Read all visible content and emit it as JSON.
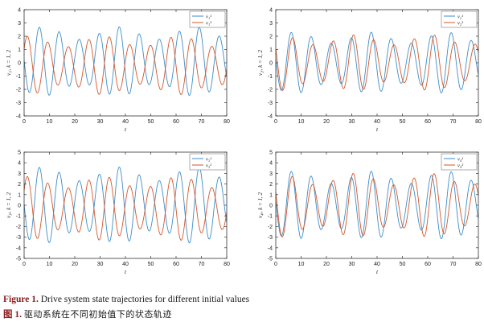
{
  "chart_data": [
    {
      "type": "line",
      "ylabel": "v₁ᵢ, k = 1, 2",
      "xlabel": "t",
      "xlim": [
        0,
        80
      ],
      "ylim": [
        -4,
        4
      ],
      "xticks": [
        0,
        10,
        20,
        30,
        40,
        50,
        60,
        70,
        80
      ],
      "yticks": [
        -4,
        -3,
        -2,
        -1,
        0,
        1,
        2,
        3,
        4
      ],
      "legend_position": "top-right",
      "series": [
        {
          "name": "v₁¹",
          "color": "#3d8ec9",
          "amplitude": 2.6,
          "period": 7.9,
          "phase": 3.1,
          "offset": 0.1
        },
        {
          "name": "v₁²",
          "color": "#d6562a",
          "amplitude": 2.2,
          "period": 8.1,
          "phase": 0.6,
          "offset": -0.2
        }
      ]
    },
    {
      "type": "line",
      "ylabel": "v₂ᵢ, k = 1, 2",
      "xlabel": "t",
      "xlim": [
        0,
        80
      ],
      "ylim": [
        -4,
        4
      ],
      "xticks": [
        0,
        10,
        20,
        30,
        40,
        50,
        60,
        70,
        80
      ],
      "yticks": [
        -4,
        -3,
        -2,
        -1,
        0,
        1,
        2,
        3,
        4
      ],
      "legend_position": "top-right",
      "series": [
        {
          "name": "v₂¹",
          "color": "#3d8ec9",
          "amplitude": 2.3,
          "period": 7.9,
          "phase": 3.0,
          "offset": 0.0
        },
        {
          "name": "v₂²",
          "color": "#d6562a",
          "amplitude": 2.1,
          "period": 8.0,
          "phase": 2.6,
          "offset": 0.0
        }
      ]
    },
    {
      "type": "line",
      "ylabel": "v₃ᵢ, k = 1, 2",
      "xlabel": "t",
      "xlim": [
        0,
        80
      ],
      "ylim": [
        -5,
        5
      ],
      "xticks": [
        0,
        10,
        20,
        30,
        40,
        50,
        60,
        70,
        80
      ],
      "yticks": [
        -5,
        -4,
        -3,
        -2,
        -1,
        0,
        1,
        2,
        3,
        4,
        5
      ],
      "legend_position": "top-right",
      "series": [
        {
          "name": "v₃¹",
          "color": "#3d8ec9",
          "amplitude": 3.6,
          "period": 7.9,
          "phase": 3.1,
          "offset": 0.0
        },
        {
          "name": "v₃²",
          "color": "#d6562a",
          "amplitude": 3.0,
          "period": 8.1,
          "phase": 0.6,
          "offset": -0.3
        }
      ]
    },
    {
      "type": "line",
      "ylabel": "v₄ᵢ, k = 1, 2",
      "xlabel": "t",
      "xlim": [
        0,
        80
      ],
      "ylim": [
        -5,
        5
      ],
      "xticks": [
        0,
        10,
        20,
        30,
        40,
        50,
        60,
        70,
        80
      ],
      "yticks": [
        -5,
        -4,
        -3,
        -2,
        -1,
        0,
        1,
        2,
        3,
        4,
        5
      ],
      "legend_position": "top-right",
      "series": [
        {
          "name": "v₄¹",
          "color": "#3d8ec9",
          "amplitude": 3.2,
          "period": 7.9,
          "phase": 3.0,
          "offset": 0.0
        },
        {
          "name": "v₄²",
          "color": "#d6562a",
          "amplitude": 3.0,
          "period": 8.0,
          "phase": 2.7,
          "offset": 0.0
        }
      ]
    }
  ],
  "caption": {
    "en_label": "Figure 1.",
    "en_text": "Drive system state trajectories for different initial values",
    "zh_label": "图 1.",
    "zh_text": "驱动系统在不同初始值下的状态轨迹"
  }
}
